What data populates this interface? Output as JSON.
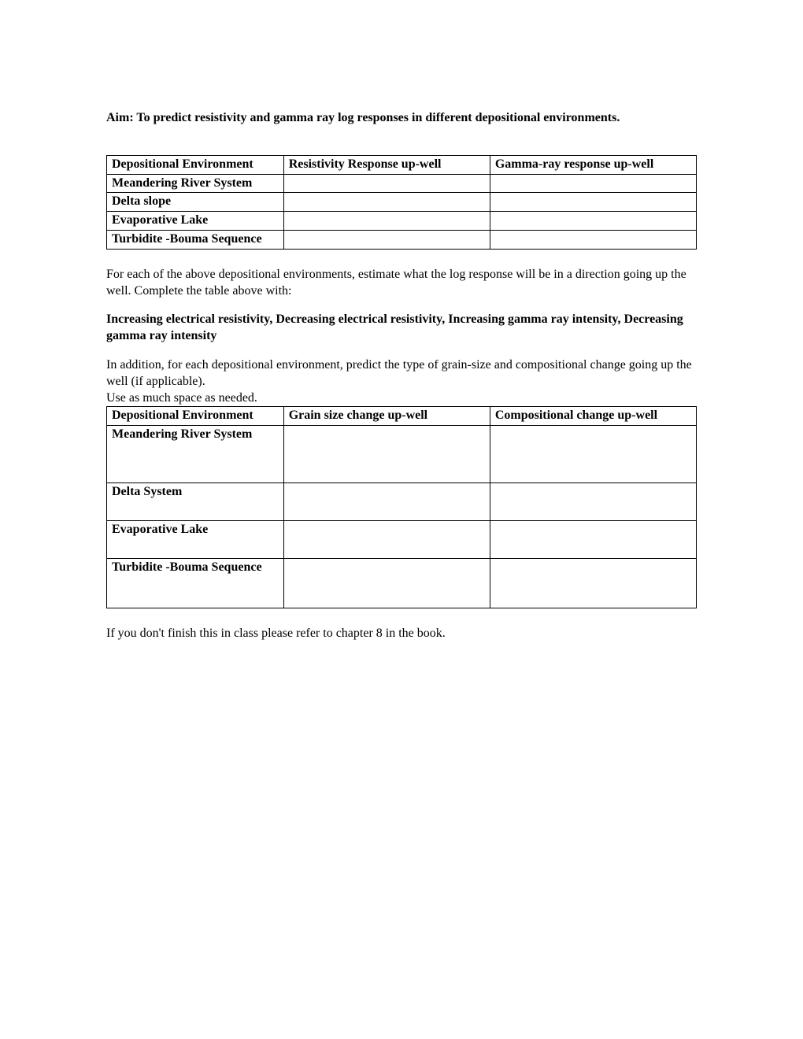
{
  "aim": "Aim: To predict resistivity and gamma ray log responses in different depositional environments.",
  "table1": {
    "headers": [
      "Depositional Environment",
      "Resistivity Response up-well",
      "Gamma-ray response up-well"
    ],
    "rows": [
      [
        "Meandering River System",
        "",
        ""
      ],
      [
        "Delta slope",
        "",
        ""
      ],
      [
        "Evaporative Lake",
        "",
        ""
      ],
      [
        "Turbidite -Bouma Sequence",
        "",
        ""
      ]
    ]
  },
  "para1": "For each of the above depositional environments, estimate what the log response will be in a direction going up the well.  Complete the table above with:",
  "para2": "Increasing electrical resistivity, Decreasing electrical resistivity, Increasing gamma ray intensity, Decreasing gamma ray intensity",
  "para3a": "In addition, for each depositional environment, predict the type of grain-size and compositional change going up the well (if applicable).",
  "para3b": "Use as much space as needed.",
  "table2": {
    "headers": [
      "Depositional Environment",
      "Grain size change up-well",
      "Compositional change up-well"
    ],
    "rows": [
      [
        "Meandering River System",
        "",
        ""
      ],
      [
        "Delta System",
        "",
        ""
      ],
      [
        "Evaporative Lake",
        "",
        ""
      ],
      [
        "Turbidite -Bouma Sequence",
        "",
        ""
      ]
    ]
  },
  "footer": "If you don't finish this in class please refer to chapter 8 in the book."
}
